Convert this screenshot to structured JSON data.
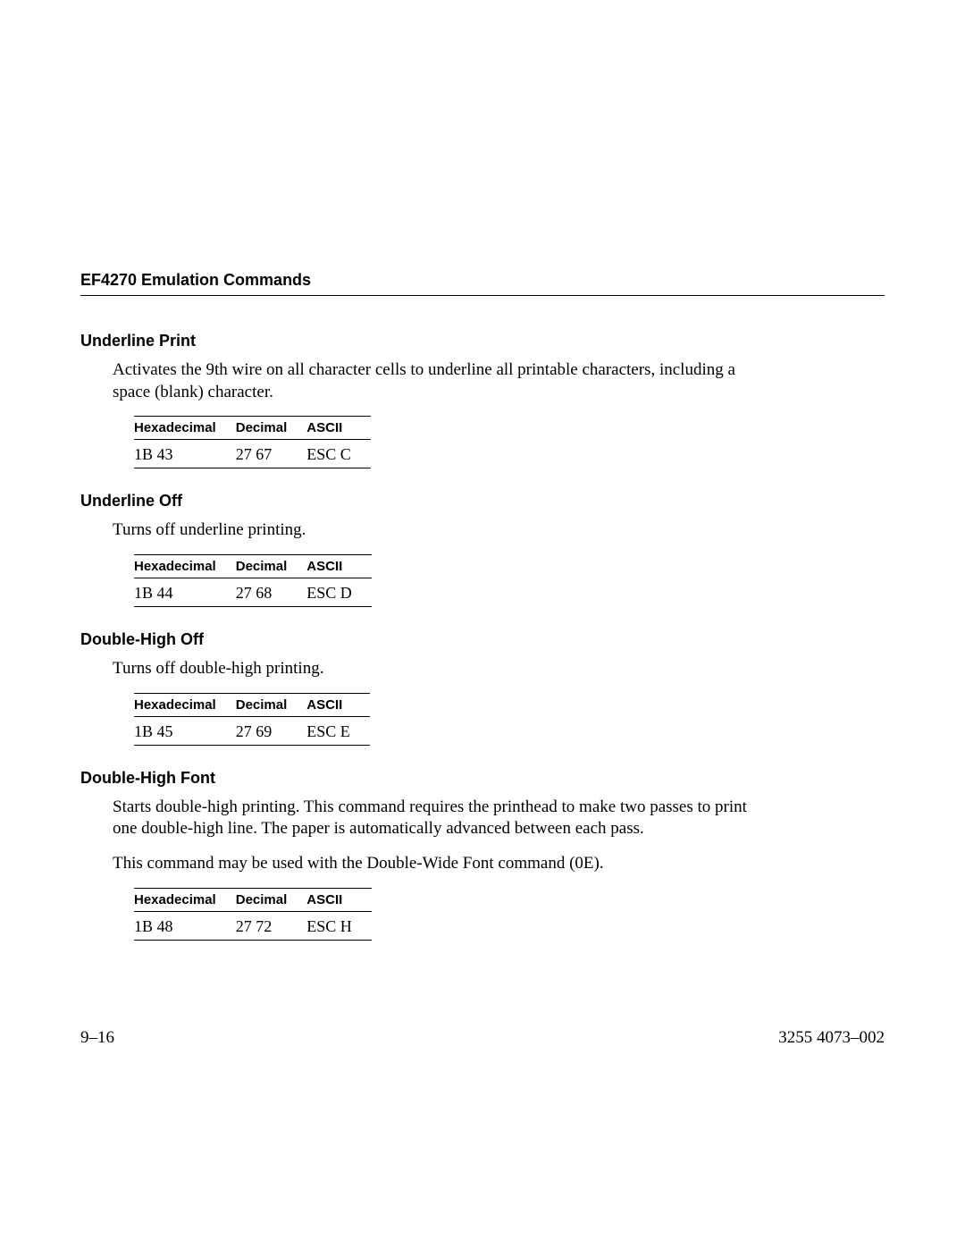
{
  "header": "EF4270 Emulation Commands",
  "sections": [
    {
      "title": "Underline Print",
      "paragraphs": [
        "Activates the 9th wire on all character cells to underline all printable characters, including a space (blank) character."
      ],
      "table": {
        "hex": "1B 43",
        "dec": "27 67",
        "ascii": "ESC C"
      }
    },
    {
      "title": "Underline Off",
      "paragraphs": [
        "Turns off underline printing."
      ],
      "table": {
        "hex": "1B 44",
        "dec": "27 68",
        "ascii": "ESC D"
      }
    },
    {
      "title": "Double-High Off",
      "paragraphs": [
        "Turns off double-high printing."
      ],
      "table": {
        "hex": "1B 45",
        "dec": "27 69",
        "ascii": "ESC E"
      }
    },
    {
      "title": "Double-High Font",
      "paragraphs": [
        "Starts double-high printing. This command requires the printhead to make two passes to print one double-high line. The paper is automatically advanced between each pass.",
        "This command may be used with the Double-Wide Font command (0E)."
      ],
      "table": {
        "hex": "1B 48",
        "dec": "27 72",
        "ascii": "ESC H"
      }
    }
  ],
  "tableHeaders": {
    "hex": "Hexadecimal",
    "dec": "Decimal",
    "ascii": "ASCII"
  },
  "footer": {
    "left": "9–16",
    "right": "3255 4073–002"
  }
}
